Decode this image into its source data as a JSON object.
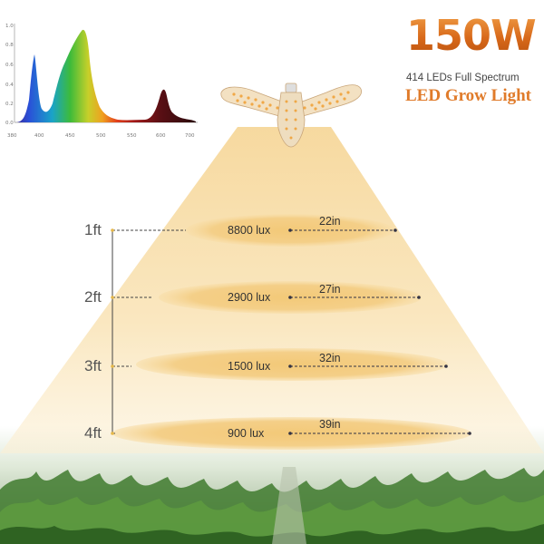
{
  "header": {
    "wattage": "150W",
    "subtitle": "414 LEDs Full Spectrum",
    "product_name": "LED Grow Light"
  },
  "spectrum": {
    "y_ticks": [
      "1.0",
      "0.8",
      "0.6",
      "0.4",
      "0.2",
      "0.0"
    ],
    "x_ticks": [
      "380",
      "400",
      "450",
      "500",
      "550",
      "600",
      "650",
      "700"
    ]
  },
  "measurements": [
    {
      "distance": "1ft",
      "lux": "8800 lux",
      "diameter": "22in"
    },
    {
      "distance": "2ft",
      "lux": "2900 lux",
      "diameter": "27in"
    },
    {
      "distance": "3ft",
      "lux": "1500 lux",
      "diameter": "32in"
    },
    {
      "distance": "4ft",
      "lux": "900 lux",
      "diameter": "39in"
    }
  ],
  "colors": {
    "title_orange": "#d8691a",
    "beam": "#f8dca0",
    "ellipse": "#f1c67a",
    "plant_green": "#3f7a2e"
  }
}
